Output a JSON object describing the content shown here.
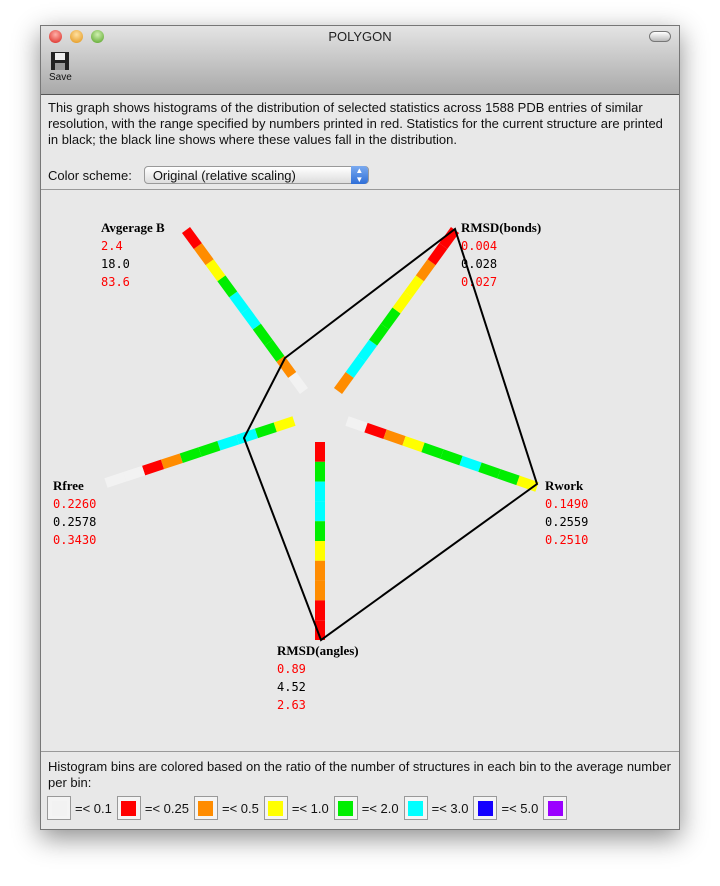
{
  "window": {
    "title": "POLYGON",
    "toolbar": {
      "save_label": "Save"
    }
  },
  "description": "This graph shows histograms of the distribution of selected statistics across 1588 PDB entries of similar resolution, with the range specified by numbers printed in red.  Statistics for the current structure are printed in black; the black line shows where these values fall in the distribution.",
  "color_scheme": {
    "label": "Color scheme:",
    "selected": "Original (relative scaling)"
  },
  "colors": {
    "white": "#f2f2f2",
    "red": "#ff0000",
    "orange": "#ff8c00",
    "yellow": "#ffff00",
    "green": "#00ee00",
    "cyan": "#00ffff",
    "blue": "#1400ff",
    "purple": "#9b00ff",
    "range": "#ff0000",
    "current": "#000000"
  },
  "axes": [
    {
      "name": "Avgerage B",
      "min": "2.4",
      "current": "18.0",
      "max": "83.6",
      "bins": [
        "white",
        "orange",
        "green",
        "green",
        "cyan",
        "cyan",
        "green",
        "yellow",
        "orange",
        "red"
      ]
    },
    {
      "name": "RMSD(bonds)",
      "min": "0.004",
      "current": "0.028",
      "max": "0.027",
      "bins": [
        "orange",
        "cyan",
        "cyan",
        "green",
        "green",
        "yellow",
        "yellow",
        "orange",
        "red",
        "red"
      ]
    },
    {
      "name": "Rwork",
      "min": "0.1490",
      "current": "0.2559",
      "max": "0.2510",
      "bins": [
        "white",
        "red",
        "orange",
        "yellow",
        "green",
        "green",
        "cyan",
        "green",
        "green",
        "yellow"
      ]
    },
    {
      "name": "RMSD(angles)",
      "min": "0.89",
      "current": "4.52",
      "max": "2.63",
      "bins": [
        "red",
        "green",
        "cyan",
        "cyan",
        "green",
        "yellow",
        "orange",
        "orange",
        "red",
        "red"
      ]
    },
    {
      "name": "Rfree",
      "min": "0.2260",
      "current": "0.2578",
      "max": "0.3430",
      "bins": [
        "yellow",
        "green",
        "cyan",
        "cyan",
        "green",
        "green",
        "orange",
        "red",
        "white",
        "white"
      ]
    }
  ],
  "legend": {
    "text": "Histogram bins are colored based on the ratio of the number of structures in each bin to the average number per bin:",
    "items": [
      {
        "color": "white",
        "label": "=< 0.1"
      },
      {
        "color": "red",
        "label": "=< 0.25"
      },
      {
        "color": "orange",
        "label": "=< 0.5"
      },
      {
        "color": "yellow",
        "label": "=< 1.0"
      },
      {
        "color": "green",
        "label": "=< 2.0"
      },
      {
        "color": "cyan",
        "label": "=< 3.0"
      },
      {
        "color": "blue",
        "label": "=< 5.0"
      },
      {
        "color": "purple",
        "label": ""
      }
    ]
  }
}
